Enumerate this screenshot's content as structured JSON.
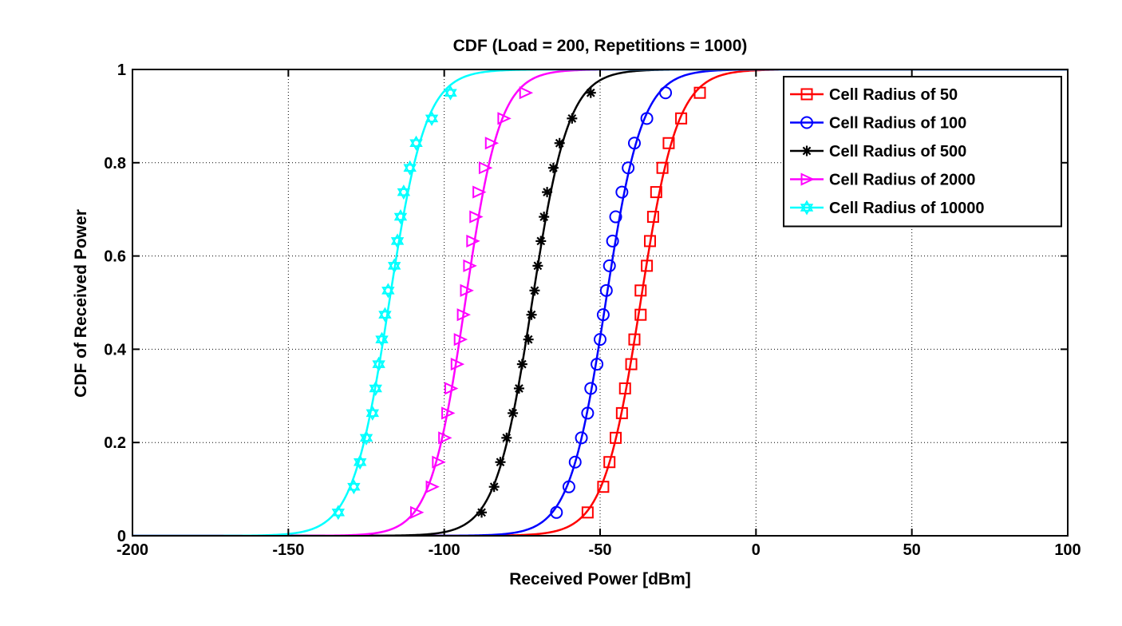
{
  "chart_data": {
    "type": "line",
    "title": "CDF (Load = 200, Repetitions = 1000)",
    "xlabel": "Received Power [dBm]",
    "ylabel": "CDF of Received Power",
    "xlim": [
      -200,
      100
    ],
    "ylim": [
      0,
      1
    ],
    "xticks": [
      -200,
      -150,
      -100,
      -50,
      0,
      50,
      100
    ],
    "xtick_labels": [
      "-200",
      "-150",
      "-100",
      "-50",
      "0",
      "50",
      "100"
    ],
    "yticks": [
      0,
      0.2,
      0.4,
      0.6,
      0.8,
      1
    ],
    "ytick_labels": [
      "0",
      "0.2",
      "0.4",
      "0.6",
      "0.8",
      "1"
    ],
    "grid": true,
    "legend_position": "top-right",
    "marker_levels": [
      0.05,
      0.105,
      0.158,
      0.21,
      0.263,
      0.316,
      0.368,
      0.421,
      0.474,
      0.526,
      0.579,
      0.632,
      0.684,
      0.737,
      0.789,
      0.842,
      0.895,
      0.95
    ],
    "series": [
      {
        "name": "Cell Radius of 50",
        "color": "#ff0000",
        "marker": "square",
        "x": [
          -54,
          -49,
          -47,
          -45,
          -43,
          -42,
          -40,
          -39,
          -37,
          -37,
          -35,
          -34,
          -33,
          -32,
          -30,
          -28,
          -24,
          -18
        ]
      },
      {
        "name": "Cell Radius of 100",
        "color": "#0000ff",
        "marker": "circle",
        "x": [
          -64,
          -60,
          -58,
          -56,
          -54,
          -53,
          -51,
          -50,
          -49,
          -48,
          -47,
          -46,
          -45,
          -43,
          -41,
          -39,
          -35,
          -29
        ]
      },
      {
        "name": "Cell Radius of 500",
        "color": "#000000",
        "marker": "star",
        "x": [
          -88,
          -84,
          -82,
          -80,
          -78,
          -76,
          -75,
          -73,
          -72,
          -71,
          -70,
          -69,
          -68,
          -67,
          -65,
          -63,
          -59,
          -53
        ]
      },
      {
        "name": "Cell Radius of 2000",
        "color": "#ff00ff",
        "marker": "triangle-right",
        "x": [
          -109,
          -104,
          -102,
          -100,
          -99,
          -98,
          -96,
          -95,
          -94,
          -93,
          -92,
          -91,
          -90,
          -89,
          -87,
          -85,
          -81,
          -74
        ]
      },
      {
        "name": "Cell Radius of 10000",
        "color": "#00ffff",
        "marker": "hexagram",
        "x": [
          -134,
          -129,
          -127,
          -125,
          -123,
          -122,
          -121,
          -120,
          -119,
          -118,
          -116,
          -115,
          -114,
          -113,
          -111,
          -109,
          -104,
          -98
        ]
      }
    ]
  }
}
